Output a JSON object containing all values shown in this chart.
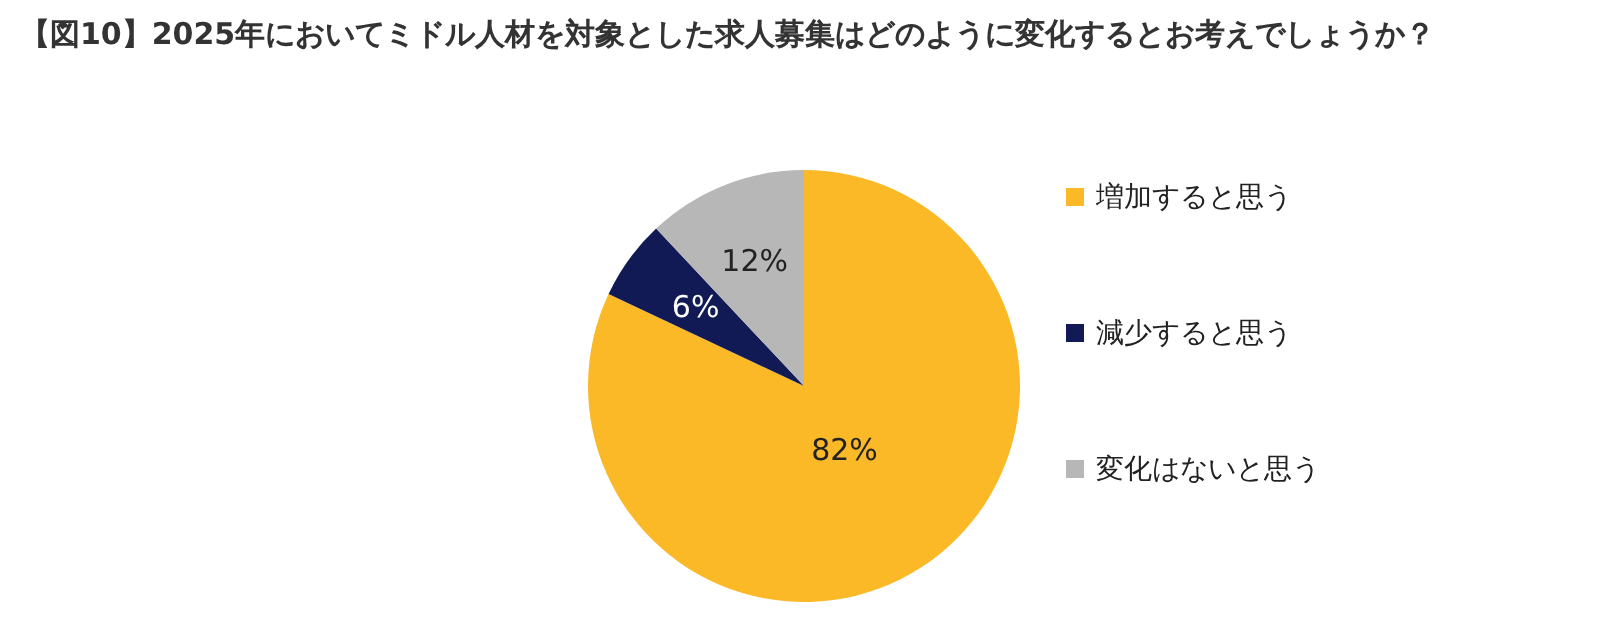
{
  "chart_data": {
    "type": "pie",
    "title": "【図10】2025年においてミドル人材を対象とした求人募集はどのように変化するとお考えでしょうか？",
    "categories": [
      "増加すると思う",
      "減少すると思う",
      "変化はないと思う"
    ],
    "values": [
      82,
      6,
      12
    ],
    "colors": [
      "#fbb827",
      "#111a55",
      "#b7b7b7"
    ],
    "value_labels": [
      "82%",
      "6%",
      "12%"
    ],
    "legend": "right"
  }
}
